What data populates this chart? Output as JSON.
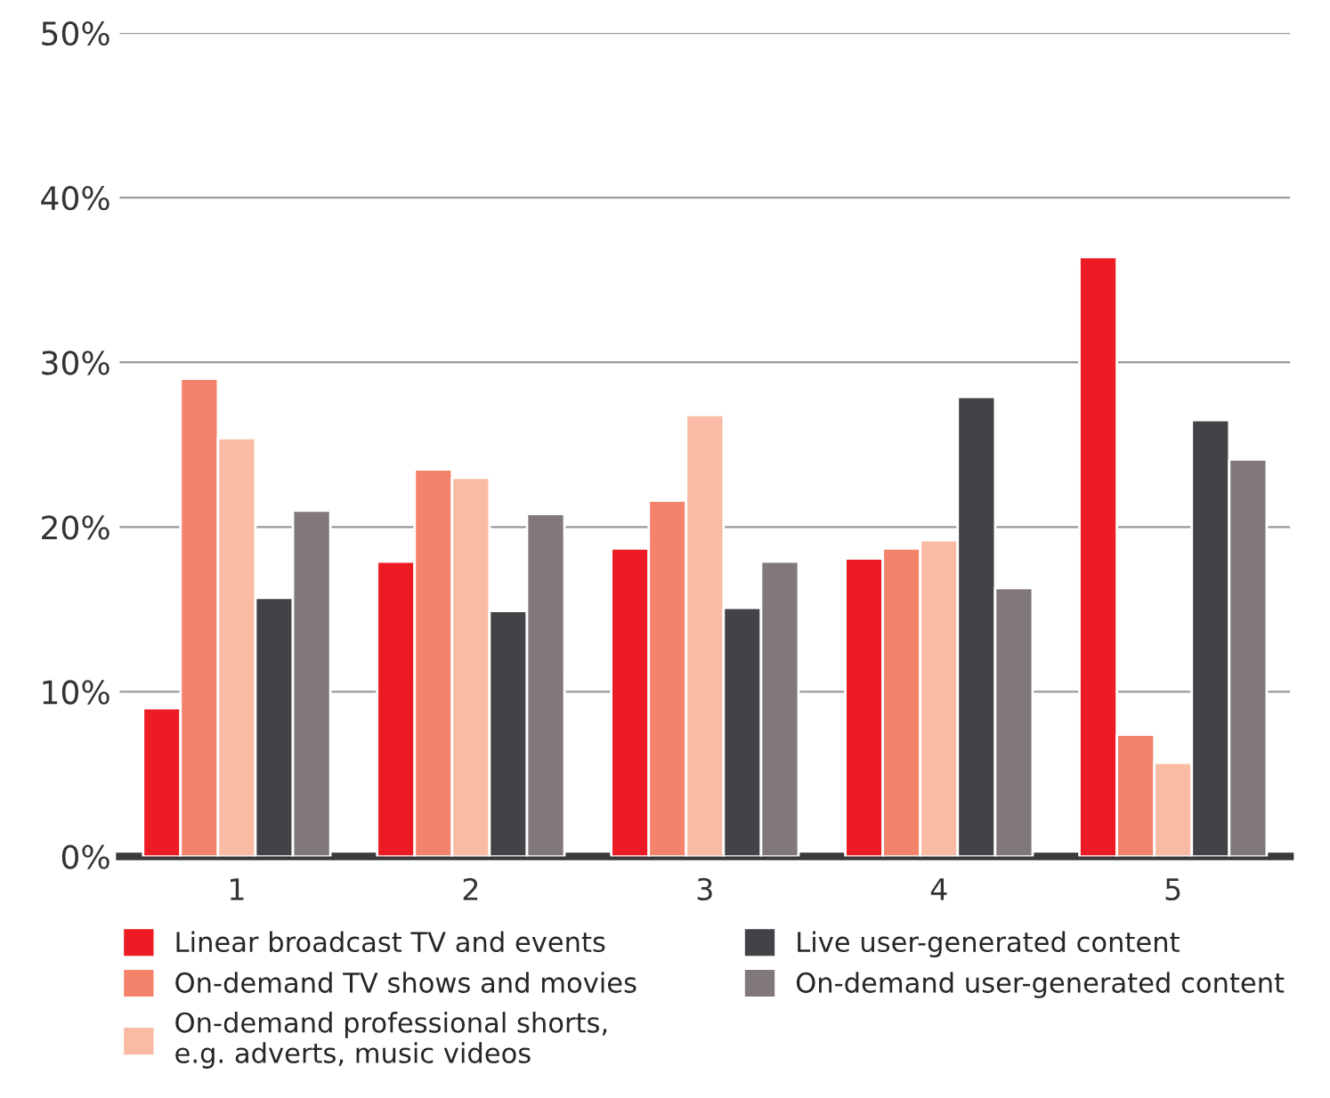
{
  "chart_data": {
    "type": "bar",
    "categories": [
      "1",
      "2",
      "3",
      "4",
      "5"
    ],
    "series": [
      {
        "name": "Linear broadcast TV and events",
        "color": "#ed1c24",
        "values": [
          9.0,
          17.9,
          18.7,
          18.1,
          36.4
        ]
      },
      {
        "name": "On-demand TV shows and movies",
        "color": "#f4836b",
        "values": [
          29.0,
          23.5,
          21.6,
          18.7,
          7.4
        ]
      },
      {
        "name": "On-demand professional shorts,\ne.g. adverts, music videos",
        "color": "#f9bba4",
        "values": [
          25.4,
          23.0,
          26.8,
          19.2,
          5.7
        ]
      },
      {
        "name": "Live user-generated content",
        "color": "#434347",
        "values": [
          15.7,
          14.9,
          15.1,
          27.9,
          26.5
        ]
      },
      {
        "name": "On-demand user-generated content",
        "color": "#807879",
        "values": [
          21.0,
          20.8,
          17.9,
          16.3,
          24.1
        ]
      }
    ],
    "ylim": [
      0,
      50
    ],
    "yticks": [
      {
        "value": 0,
        "label": "0%"
      },
      {
        "value": 10,
        "label": "10%"
      },
      {
        "value": 20,
        "label": "20%"
      },
      {
        "value": 30,
        "label": "30%"
      },
      {
        "value": 40,
        "label": "40%"
      },
      {
        "value": 50,
        "label": "50%"
      }
    ],
    "grid": "y",
    "legend": "bottom"
  }
}
